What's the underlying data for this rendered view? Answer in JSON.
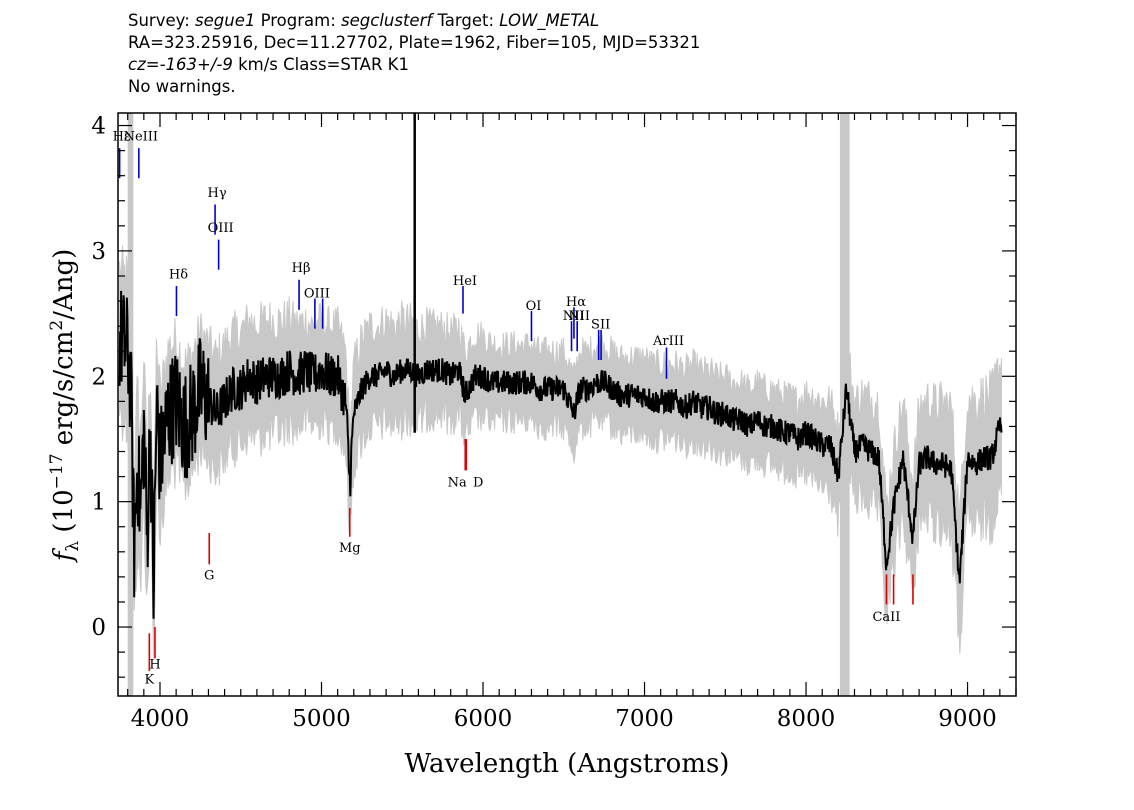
{
  "header": {
    "survey_label": "Survey:",
    "survey": "segue1",
    "program_label": "Program:",
    "program": "segclusterf",
    "target_label": "Target:",
    "target": "LOW_METAL",
    "line2": "RA=323.25916, Dec=11.27702, Plate=1962, Fiber=105, MJD=53321",
    "cz_label": "cz=",
    "cz": "-163+/-9",
    "cz_units": "km/s",
    "class": "Class=STAR K1",
    "warnings": "No warnings."
  },
  "chart_data": {
    "type": "line",
    "title": "",
    "xlabel": "Wavelength (Angstroms)",
    "ylabel": "f_λ (10^-17 erg/s/cm^2/Ang)",
    "xlim": [
      3740,
      9300
    ],
    "ylim": [
      -0.55,
      4.1
    ],
    "x_ticks": [
      4000,
      5000,
      6000,
      7000,
      8000,
      9000
    ],
    "y_ticks": [
      0,
      1,
      2,
      3,
      4
    ],
    "grid": false,
    "colors": {
      "flux": "#000000",
      "noise_band": "#c8c8c8",
      "emission": "#0000cc",
      "absorption": "#dd0000",
      "masked_band": "#c8c8c8"
    },
    "masked_regions": [
      [
        3800,
        3835
      ],
      [
        8210,
        8270
      ]
    ],
    "series": [
      {
        "role": "flux",
        "x": [
          3750,
          3800,
          3820,
          3840,
          3860,
          3880,
          3900,
          3920,
          3940,
          3960,
          3980,
          4000,
          4050,
          4100,
          4150,
          4200,
          4250,
          4300,
          4350,
          4400,
          4450,
          4500,
          4550,
          4600,
          4650,
          4700,
          4750,
          4800,
          4850,
          4900,
          4950,
          5000,
          5050,
          5100,
          5150,
          5175,
          5200,
          5250,
          5300,
          5350,
          5400,
          5450,
          5500,
          5550,
          5600,
          5650,
          5700,
          5750,
          5800,
          5850,
          5890,
          5950,
          6000,
          6050,
          6100,
          6150,
          6200,
          6250,
          6300,
          6350,
          6400,
          6450,
          6500,
          6563,
          6600,
          6650,
          6700,
          6750,
          6800,
          6850,
          6900,
          6950,
          7000,
          7050,
          7100,
          7150,
          7200,
          7250,
          7300,
          7350,
          7400,
          7450,
          7500,
          7550,
          7600,
          7650,
          7700,
          7750,
          7800,
          7850,
          7900,
          7950,
          8000,
          8050,
          8100,
          8150,
          8200,
          8250,
          8300,
          8350,
          8400,
          8450,
          8498,
          8542,
          8600,
          8662,
          8700,
          8750,
          8800,
          8850,
          8900,
          8950,
          9000,
          9050,
          9100,
          9150,
          9200
        ],
        "y": [
          2.3,
          2.2,
          1.9,
          0.6,
          1.3,
          0.9,
          1.6,
          0.7,
          1.6,
          0.3,
          1.8,
          1.3,
          1.7,
          1.8,
          1.6,
          1.7,
          1.9,
          1.8,
          1.7,
          1.8,
          1.9,
          1.9,
          2.0,
          1.95,
          2.0,
          2.0,
          2.0,
          2.05,
          2.0,
          2.05,
          2.0,
          2.05,
          2.0,
          2.0,
          1.8,
          1.15,
          1.7,
          1.9,
          2.0,
          2.0,
          2.05,
          2.0,
          2.05,
          2.05,
          2.0,
          2.05,
          2.05,
          2.05,
          2.0,
          2.05,
          1.85,
          2.0,
          2.0,
          1.95,
          1.95,
          1.95,
          1.95,
          1.95,
          1.95,
          1.9,
          1.9,
          1.9,
          1.9,
          1.7,
          1.9,
          1.9,
          1.95,
          1.95,
          1.9,
          1.85,
          1.85,
          1.85,
          1.85,
          1.8,
          1.8,
          1.8,
          1.8,
          1.75,
          1.8,
          1.75,
          1.75,
          1.7,
          1.7,
          1.65,
          1.65,
          1.6,
          1.65,
          1.6,
          1.6,
          1.55,
          1.55,
          1.5,
          1.55,
          1.5,
          1.45,
          1.45,
          1.2,
          1.9,
          1.4,
          1.45,
          1.4,
          1.35,
          0.5,
          0.95,
          1.35,
          0.7,
          1.3,
          1.35,
          1.3,
          1.3,
          1.25,
          0.35,
          1.35,
          1.3,
          1.35,
          1.35,
          1.6
        ]
      },
      {
        "role": "noise_band",
        "x": [
          3750,
          3850,
          3950,
          4100,
          4300,
          4500,
          4700,
          4900,
          5100,
          5300,
          5500,
          5700,
          5900,
          6100,
          6300,
          6500,
          6700,
          6900,
          7100,
          7300,
          7500,
          7700,
          7900,
          8100,
          8300,
          8500,
          8700,
          8900,
          9100,
          9200
        ],
        "y": [
          0.55,
          0.6,
          0.55,
          0.5,
          0.45,
          0.45,
          0.45,
          0.4,
          0.4,
          0.4,
          0.4,
          0.35,
          0.35,
          0.3,
          0.3,
          0.3,
          0.3,
          0.3,
          0.3,
          0.3,
          0.3,
          0.3,
          0.3,
          0.35,
          0.4,
          0.45,
          0.45,
          0.5,
          0.5,
          0.5
        ]
      }
    ],
    "emission_lines": [
      {
        "label": "Hε",
        "wave": 3750,
        "label_y": 3.88,
        "y1": 3.58,
        "y2": 3.82
      },
      {
        "label": "NeIII",
        "wave": 3869,
        "label_y": 3.88,
        "y1": 3.58,
        "y2": 3.82
      },
      {
        "label": "Hδ",
        "wave": 4102,
        "label_y": 2.78,
        "y1": 2.48,
        "y2": 2.72
      },
      {
        "label": "Hγ",
        "wave": 4341,
        "label_y": 3.43,
        "y1": 3.13,
        "y2": 3.37
      },
      {
        "label": "OIII",
        "wave": 4363,
        "label_y": 3.15,
        "y1": 2.85,
        "y2": 3.09
      },
      {
        "label": "Hβ",
        "wave": 4861,
        "label_y": 2.83,
        "y1": 2.53,
        "y2": 2.77
      },
      {
        "label": "OIII",
        "wave": 4959,
        "label_y": 2.63,
        "y1": 2.38,
        "y2": 2.62
      },
      {
        "label": "",
        "wave": 5007,
        "label_y": 2.63,
        "y1": 2.38,
        "y2": 2.62
      },
      {
        "label": "HeI",
        "wave": 5876,
        "label_y": 2.73,
        "y1": 2.5,
        "y2": 2.72
      },
      {
        "label": "OI",
        "wave": 6300,
        "label_y": 2.53,
        "y1": 2.28,
        "y2": 2.52
      },
      {
        "label": "NII",
        "wave": 6548,
        "label_y": 2.45,
        "y1": 2.2,
        "y2": 2.44
      },
      {
        "label": "Hα",
        "wave": 6563,
        "label_y": 2.56,
        "y1": 2.3,
        "y2": 2.55
      },
      {
        "label": "NII",
        "wave": 6583,
        "label_y": 2.45,
        "y1": 2.2,
        "y2": 2.44
      },
      {
        "label": "SII",
        "wave": 6716,
        "label_y": 2.38,
        "y1": 2.13,
        "y2": 2.37
      },
      {
        "label": "",
        "wave": 6731,
        "label_y": 2.38,
        "y1": 2.13,
        "y2": 2.37
      },
      {
        "label": "ArIII",
        "wave": 7136,
        "label_y": 2.25,
        "y1": 1.98,
        "y2": 2.23
      }
    ],
    "absorption_lines": [
      {
        "label": "K",
        "wave": 3934,
        "label_y": -0.45,
        "y1": -0.35,
        "y2": -0.05
      },
      {
        "label": "H",
        "wave": 3969,
        "label_y": -0.33,
        "y1": -0.25,
        "y2": 0.0
      },
      {
        "label": "G",
        "wave": 4305,
        "label_y": 0.38,
        "y1": 0.5,
        "y2": 0.75
      },
      {
        "label": "Mg",
        "wave": 5175,
        "label_y": 0.6,
        "y1": 0.72,
        "y2": 0.95
      },
      {
        "label": "Na",
        "wave": 5890,
        "label_y": 1.12,
        "y1": 1.25,
        "y2": 1.5
      },
      {
        "label": "D",
        "wave": 5896,
        "label_y": 1.12,
        "y1": 1.25,
        "y2": 1.5
      },
      {
        "label": "CaII",
        "wave": 8498,
        "label_y": 0.05,
        "y1": 0.18,
        "y2": 0.42
      },
      {
        "label": "",
        "wave": 8542,
        "label_y": 0.05,
        "y1": 0.18,
        "y2": 0.42
      },
      {
        "label": "",
        "wave": 8662,
        "label_y": 0.05,
        "y1": 0.18,
        "y2": 0.42
      }
    ]
  }
}
